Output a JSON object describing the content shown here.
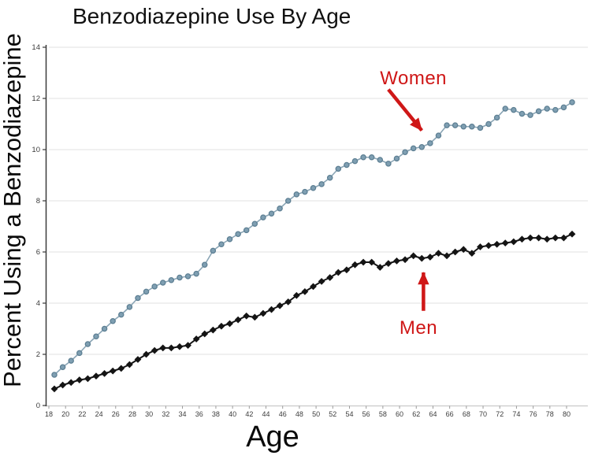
{
  "title": "Benzodiazepine Use By Age",
  "xlabel": "Age",
  "ylabel": "Percent Using a Benzodiazepine",
  "colors": {
    "background": "#ffffff",
    "grid": "#e2e2e2",
    "x_axis_line": "#c9c9c9",
    "y_axis_line": "#3a3a3a",
    "tick_label": "#3c3c3c",
    "annotation_red": "#cf1717",
    "women_line": "#8aa5b5",
    "women_marker_fill": "#7f9fb2",
    "women_marker_stroke": "#5d7f93",
    "men_line": "#141414"
  },
  "chart_data": {
    "type": "line",
    "title": "Benzodiazepine Use By Age",
    "xlabel": "Age",
    "ylabel": "Percent Using a Benzodiazepine",
    "xlim": [
      18,
      80
    ],
    "ylim": [
      0,
      14
    ],
    "grid": "horizontal",
    "legend": "none (direct red arrow annotations)",
    "x_ticks": [
      18,
      20,
      22,
      24,
      26,
      28,
      30,
      32,
      34,
      36,
      38,
      40,
      42,
      44,
      46,
      48,
      50,
      52,
      54,
      56,
      58,
      60,
      62,
      64,
      66,
      68,
      70,
      72,
      74,
      76,
      78,
      80
    ],
    "y_ticks": [
      0,
      2,
      4,
      6,
      8,
      10,
      12,
      14
    ],
    "x": [
      18,
      19,
      20,
      21,
      22,
      23,
      24,
      25,
      26,
      27,
      28,
      29,
      30,
      31,
      32,
      33,
      34,
      35,
      36,
      37,
      38,
      39,
      40,
      41,
      42,
      43,
      44,
      45,
      46,
      47,
      48,
      49,
      50,
      51,
      52,
      53,
      54,
      55,
      56,
      57,
      58,
      59,
      60,
      61,
      62,
      63,
      64,
      65,
      66,
      67,
      68,
      69,
      70,
      71,
      72,
      73,
      74,
      75,
      76,
      77,
      78,
      79,
      80
    ],
    "series": [
      {
        "name": "Women",
        "marker": "circle",
        "line_color": "#8aa5b5",
        "marker_fill": "#7f9fb2",
        "marker_stroke": "#5d7f93",
        "line_width": 1.6,
        "values": [
          1.2,
          1.5,
          1.75,
          2.05,
          2.4,
          2.7,
          3.0,
          3.3,
          3.55,
          3.85,
          4.2,
          4.45,
          4.65,
          4.8,
          4.9,
          5.0,
          5.05,
          5.15,
          5.5,
          6.05,
          6.3,
          6.5,
          6.7,
          6.85,
          7.1,
          7.35,
          7.5,
          7.7,
          8.0,
          8.25,
          8.35,
          8.5,
          8.65,
          8.9,
          9.25,
          9.4,
          9.55,
          9.7,
          9.7,
          9.6,
          9.45,
          9.65,
          9.9,
          10.05,
          10.1,
          10.25,
          10.55,
          10.95,
          10.95,
          10.9,
          10.9,
          10.85,
          11.0,
          11.25,
          11.6,
          11.55,
          11.4,
          11.35,
          11.5,
          11.6,
          11.55,
          11.65,
          11.85
        ]
      },
      {
        "name": "Men",
        "marker": "diamond",
        "line_color": "#141414",
        "marker_fill": "#141414",
        "marker_stroke": "#141414",
        "line_width": 2,
        "values": [
          0.65,
          0.8,
          0.9,
          1.0,
          1.05,
          1.15,
          1.25,
          1.35,
          1.45,
          1.6,
          1.8,
          2.0,
          2.15,
          2.25,
          2.25,
          2.3,
          2.35,
          2.6,
          2.8,
          2.95,
          3.1,
          3.2,
          3.35,
          3.5,
          3.45,
          3.6,
          3.75,
          3.9,
          4.05,
          4.3,
          4.45,
          4.65,
          4.85,
          5.0,
          5.2,
          5.3,
          5.5,
          5.6,
          5.6,
          5.4,
          5.55,
          5.65,
          5.7,
          5.85,
          5.75,
          5.8,
          5.95,
          5.85,
          6.0,
          6.1,
          5.95,
          6.2,
          6.25,
          6.3,
          6.35,
          6.4,
          6.5,
          6.55,
          6.55,
          6.5,
          6.55,
          6.55,
          6.7
        ]
      }
    ],
    "annotations": [
      {
        "text": "Women",
        "color": "#cf1717",
        "font_size": 24,
        "x": 61.0,
        "y": 12.8,
        "arrow": {
          "x1": 58.0,
          "y1": 12.35,
          "x2": 62.0,
          "y2": 10.75
        }
      },
      {
        "text": "Men",
        "color": "#cf1717",
        "font_size": 24,
        "x": 61.6,
        "y": 3.05,
        "arrow": {
          "x1": 62.2,
          "y1": 3.7,
          "x2": 62.2,
          "y2": 5.2
        }
      }
    ]
  }
}
